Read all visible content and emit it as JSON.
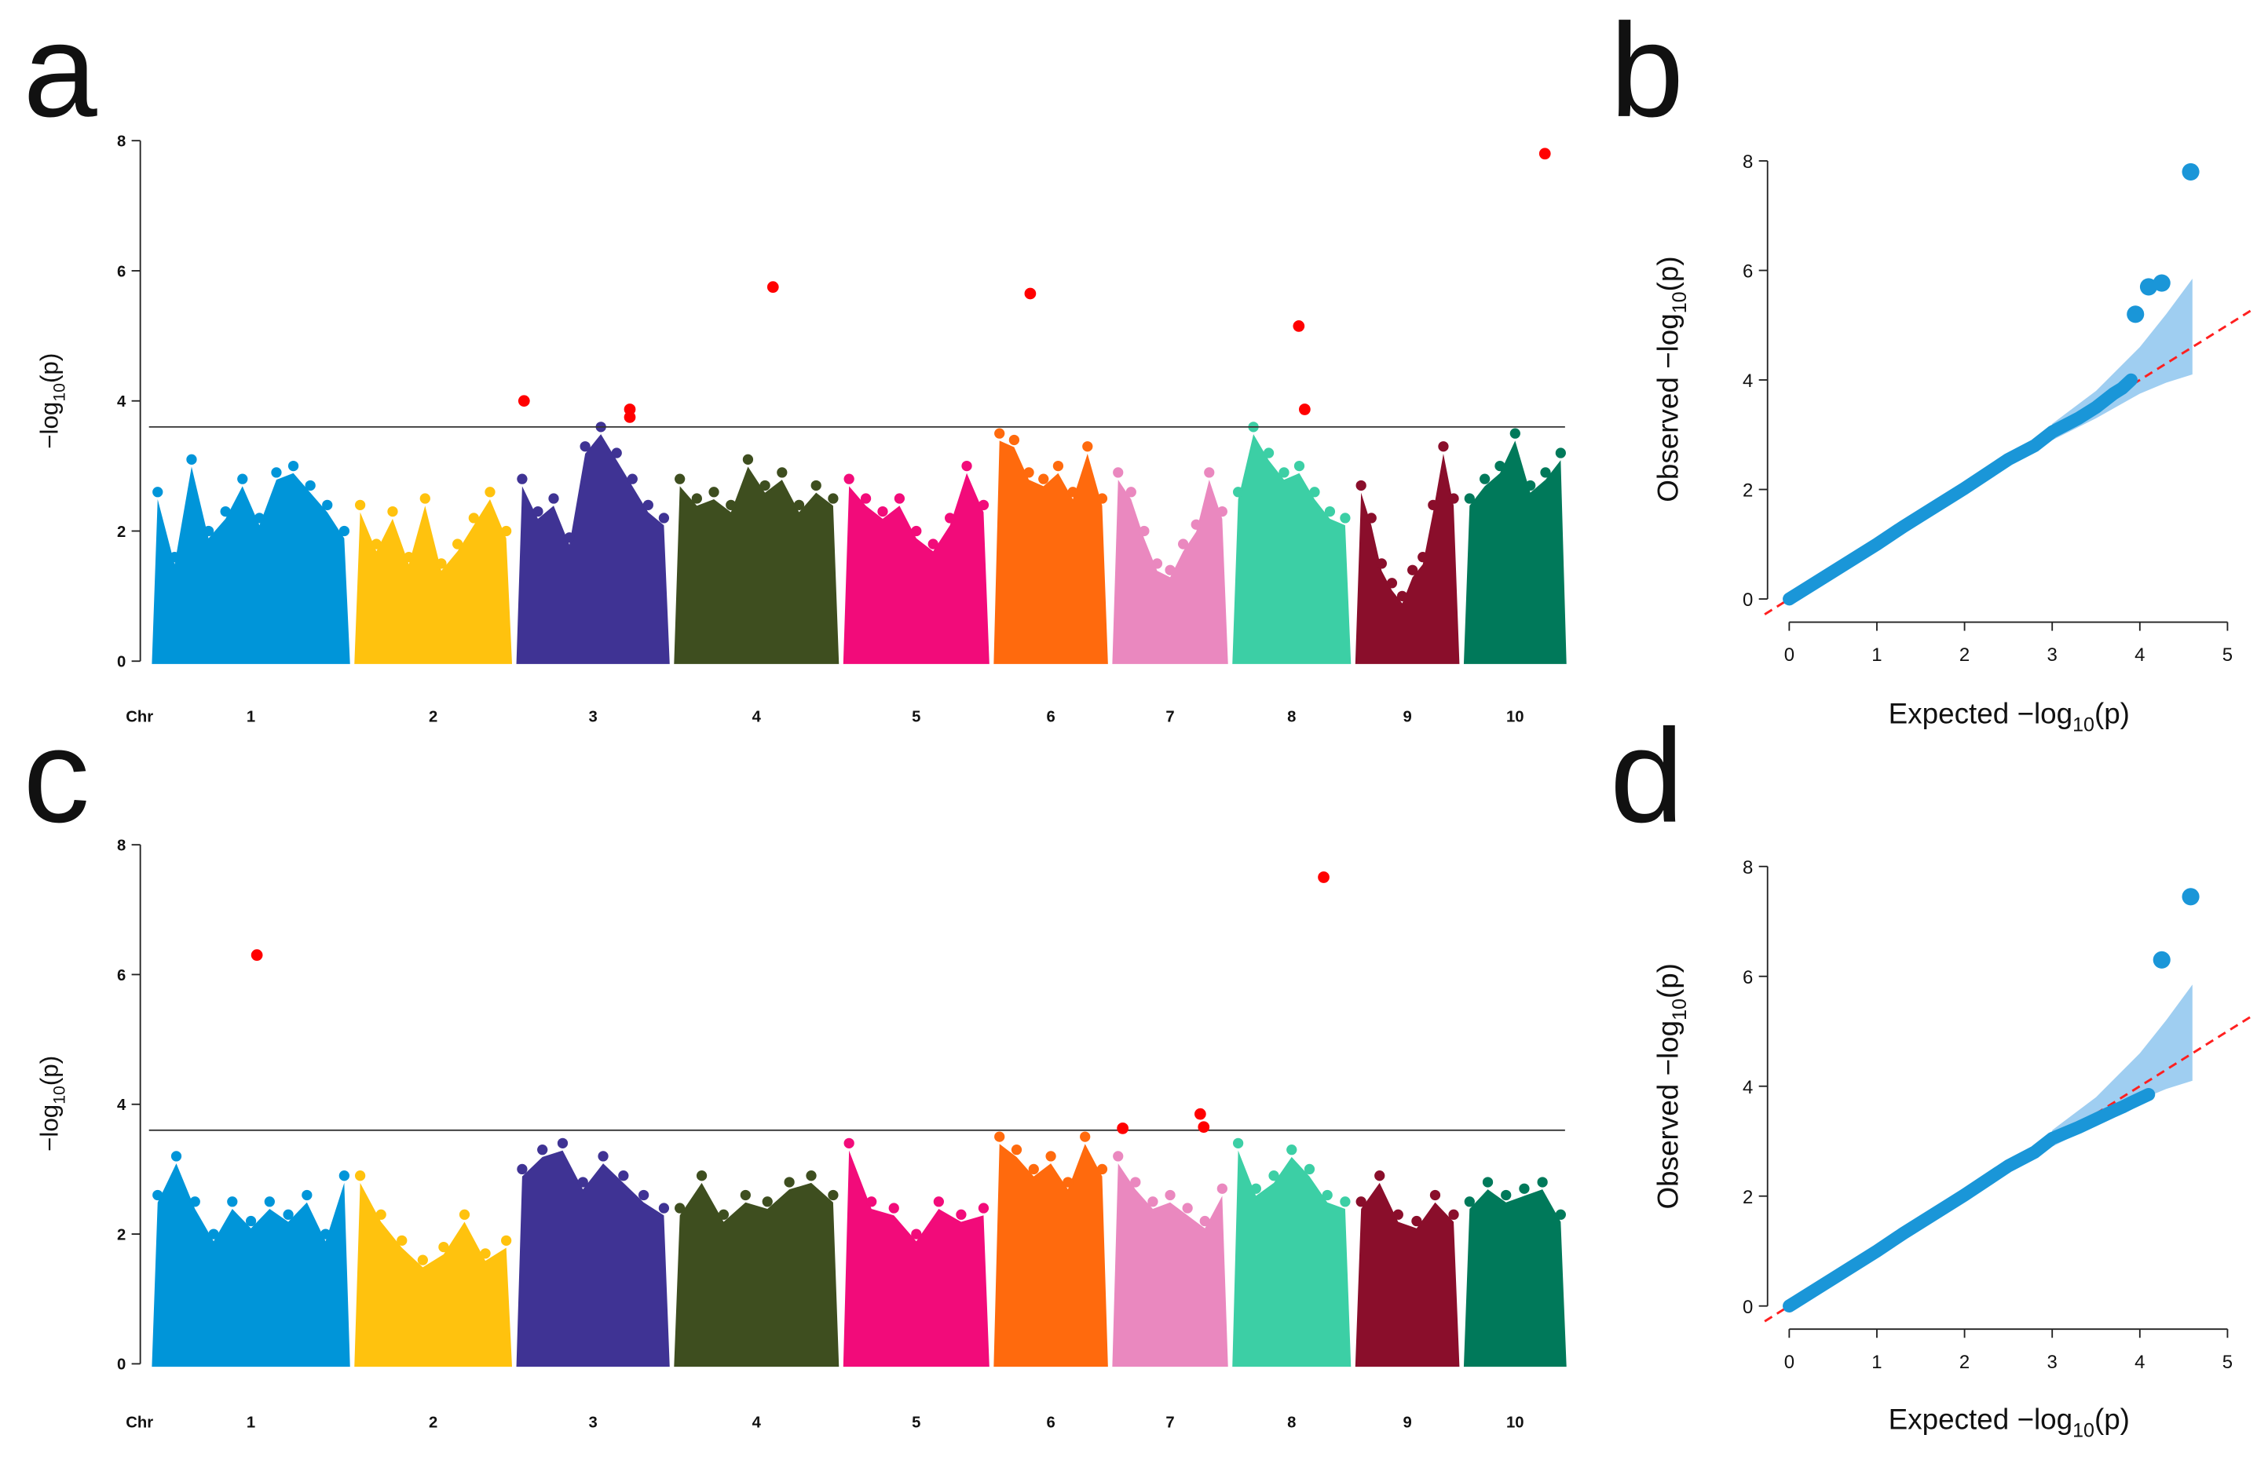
{
  "chart_data": [
    {
      "type": "manhattan",
      "title": "a",
      "x_label": "Chr",
      "y_label": {
        "text": "−log",
        "sub": "10",
        "arg": "(p)"
      },
      "ylim": [
        0,
        8
      ],
      "yticks": [
        0,
        2,
        4,
        6,
        8
      ],
      "threshold": 3.6,
      "hit_color": "#ff0000",
      "series": [
        {
          "name": "1",
          "color": "#0095d9",
          "values": [
            2.6,
            1.6,
            3.1,
            2.0,
            2.3,
            2.8,
            2.2,
            2.9,
            3.0,
            2.7,
            2.4,
            2.0
          ],
          "hits": []
        },
        {
          "name": "2",
          "color": "#ffc20e",
          "values": [
            2.4,
            1.8,
            2.3,
            1.6,
            2.5,
            1.5,
            1.8,
            2.2,
            2.6,
            2.0
          ],
          "hits": []
        },
        {
          "name": "3",
          "color": "#3f3394",
          "values": [
            2.8,
            2.3,
            2.5,
            1.9,
            3.3,
            3.6,
            3.2,
            2.8,
            2.4,
            2.2
          ],
          "hits": [
            4.0,
            3.87,
            3.75
          ]
        },
        {
          "name": "4",
          "color": "#3e4e1f",
          "values": [
            2.8,
            2.5,
            2.6,
            2.4,
            3.1,
            2.7,
            2.9,
            2.4,
            2.7,
            2.5
          ],
          "hits": [
            5.75
          ]
        },
        {
          "name": "5",
          "color": "#f20b7a",
          "values": [
            2.8,
            2.5,
            2.3,
            2.5,
            2.0,
            1.8,
            2.2,
            3.0,
            2.4
          ],
          "hits": []
        },
        {
          "name": "6",
          "color": "#ff6a0d",
          "values": [
            3.5,
            3.4,
            2.9,
            2.8,
            3.0,
            2.6,
            3.3,
            2.5
          ],
          "hits": [
            5.65
          ]
        },
        {
          "name": "7",
          "color": "#ea88bf",
          "values": [
            2.9,
            2.6,
            2.0,
            1.5,
            1.4,
            1.8,
            2.1,
            2.9,
            2.3
          ],
          "hits": []
        },
        {
          "name": "8",
          "color": "#3ccfa5",
          "values": [
            2.6,
            3.6,
            3.2,
            2.9,
            3.0,
            2.6,
            2.3,
            2.2
          ],
          "hits": [
            5.15,
            3.87
          ]
        },
        {
          "name": "9",
          "color": "#8a0e2b",
          "values": [
            2.7,
            2.2,
            1.5,
            1.2,
            1.0,
            1.4,
            1.6,
            2.4,
            3.3,
            2.5
          ],
          "hits": []
        },
        {
          "name": "10",
          "color": "#00795a",
          "values": [
            2.5,
            2.8,
            3.0,
            3.5,
            2.7,
            2.9,
            3.2
          ],
          "hits": [
            7.8
          ]
        }
      ]
    },
    {
      "type": "qq",
      "title": "b",
      "x_label": {
        "word": "Expected",
        "text": "−log",
        "sub": "10",
        "arg": "(p)"
      },
      "y_label": {
        "word": "Observed",
        "text": "−log",
        "sub": "10",
        "arg": "(p)"
      },
      "xlim": [
        0,
        5
      ],
      "xticks": [
        0,
        1,
        2,
        3,
        4,
        5
      ],
      "ylim": [
        0,
        8
      ],
      "yticks": [
        0,
        2,
        4,
        6,
        8
      ],
      "color": "#1a96d8",
      "band_color": "#8ec6ee",
      "line_color": "#ff2020",
      "line": {
        "x": [
          0,
          0.5,
          1,
          1.3,
          1.5,
          2,
          2.5,
          2.8,
          3,
          3.3,
          3.5,
          3.7,
          3.8,
          3.9
        ],
        "y": [
          0,
          0.5,
          1,
          1.32,
          1.52,
          2.02,
          2.55,
          2.8,
          3.05,
          3.3,
          3.5,
          3.75,
          3.85,
          4.0
        ]
      },
      "points": {
        "x": [
          3.95,
          4.1,
          4.25,
          4.58
        ],
        "y": [
          5.2,
          5.7,
          5.77,
          7.8
        ]
      },
      "band": {
        "x": [
          3.0,
          3.5,
          4.0,
          4.3,
          4.6
        ],
        "upper": [
          3.2,
          3.8,
          4.6,
          5.2,
          5.85
        ],
        "lower": [
          2.9,
          3.3,
          3.75,
          3.95,
          4.1
        ]
      }
    },
    {
      "type": "manhattan",
      "title": "c",
      "x_label": "Chr",
      "y_label": {
        "text": "−log",
        "sub": "10",
        "arg": "(p)"
      },
      "ylim": [
        0,
        8
      ],
      "yticks": [
        0,
        2,
        4,
        6,
        8
      ],
      "threshold": 3.6,
      "hit_color": "#ff0000",
      "series": [
        {
          "name": "1",
          "color": "#0095d9",
          "values": [
            2.6,
            3.2,
            2.5,
            2.0,
            2.5,
            2.2,
            2.5,
            2.3,
            2.6,
            2.0,
            2.9
          ],
          "hits": [
            6.3
          ]
        },
        {
          "name": "2",
          "color": "#ffc20e",
          "values": [
            2.9,
            2.3,
            1.9,
            1.6,
            1.8,
            2.3,
            1.7,
            1.9
          ],
          "hits": []
        },
        {
          "name": "3",
          "color": "#3f3394",
          "values": [
            3.0,
            3.3,
            3.4,
            2.8,
            3.2,
            2.9,
            2.6,
            2.4
          ],
          "hits": []
        },
        {
          "name": "4",
          "color": "#3e4e1f",
          "values": [
            2.4,
            2.9,
            2.3,
            2.6,
            2.5,
            2.8,
            2.9,
            2.6
          ],
          "hits": []
        },
        {
          "name": "5",
          "color": "#f20b7a",
          "values": [
            3.4,
            2.5,
            2.4,
            2.0,
            2.5,
            2.3,
            2.4
          ],
          "hits": []
        },
        {
          "name": "6",
          "color": "#ff6a0d",
          "values": [
            3.5,
            3.3,
            3.0,
            3.2,
            2.8,
            3.5,
            3.0
          ],
          "hits": []
        },
        {
          "name": "7",
          "color": "#ea88bf",
          "values": [
            3.2,
            2.8,
            2.5,
            2.6,
            2.4,
            2.2,
            2.7
          ],
          "hits": [
            3.63,
            3.85,
            3.65
          ]
        },
        {
          "name": "8",
          "color": "#3ccfa5",
          "values": [
            3.4,
            2.7,
            2.9,
            3.3,
            3.0,
            2.6,
            2.5
          ],
          "hits": [
            7.5
          ]
        },
        {
          "name": "9",
          "color": "#8a0e2b",
          "values": [
            2.5,
            2.9,
            2.3,
            2.2,
            2.6,
            2.3
          ],
          "hits": []
        },
        {
          "name": "10",
          "color": "#00795a",
          "values": [
            2.5,
            2.8,
            2.6,
            2.7,
            2.8,
            2.3
          ],
          "hits": []
        }
      ]
    },
    {
      "type": "qq",
      "title": "d",
      "x_label": {
        "word": "Expected",
        "text": "−log",
        "sub": "10",
        "arg": "(p)"
      },
      "y_label": {
        "word": "Observed",
        "text": "−log",
        "sub": "10",
        "arg": "(p)"
      },
      "xlim": [
        0,
        5
      ],
      "xticks": [
        0,
        1,
        2,
        3,
        4,
        5
      ],
      "ylim": [
        0,
        8
      ],
      "yticks": [
        0,
        2,
        4,
        6,
        8
      ],
      "color": "#1a96d8",
      "band_color": "#8ec6ee",
      "line_color": "#ff2020",
      "line": {
        "x": [
          0,
          0.5,
          1,
          1.3,
          1.5,
          2,
          2.5,
          2.8,
          3,
          3.3,
          3.5,
          3.7,
          3.8,
          3.9,
          4.1
        ],
        "y": [
          0,
          0.5,
          1,
          1.32,
          1.52,
          2.02,
          2.55,
          2.8,
          3.05,
          3.25,
          3.4,
          3.55,
          3.62,
          3.7,
          3.85
        ]
      },
      "points": {
        "x": [
          4.25,
          4.58
        ],
        "y": [
          6.3,
          7.45
        ]
      },
      "band": {
        "x": [
          3.0,
          3.5,
          4.0,
          4.3,
          4.6
        ],
        "upper": [
          3.2,
          3.8,
          4.6,
          5.2,
          5.85
        ],
        "lower": [
          2.9,
          3.3,
          3.75,
          3.95,
          4.1
        ]
      }
    }
  ]
}
